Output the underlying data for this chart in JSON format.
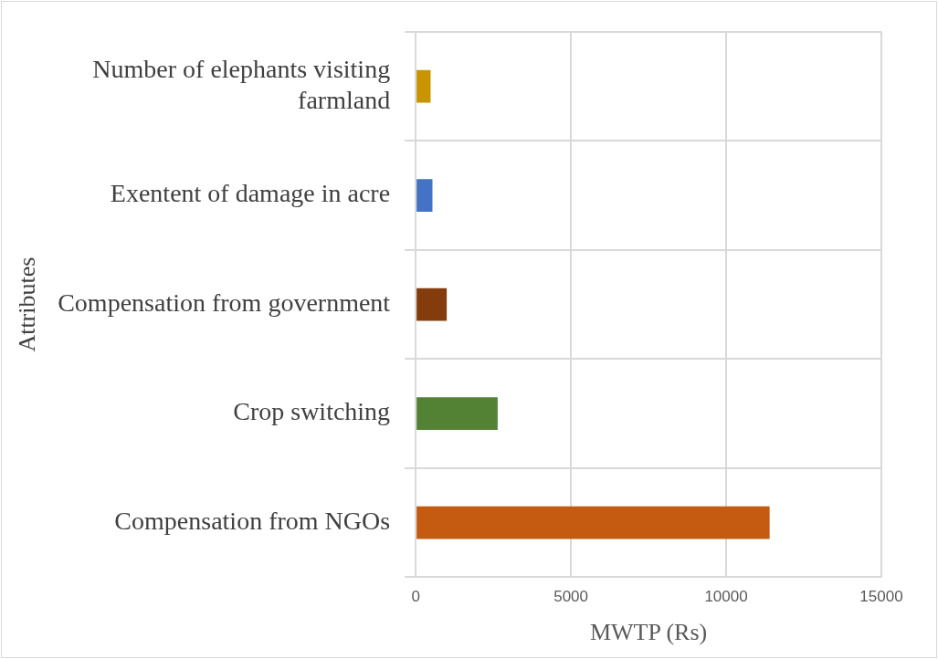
{
  "chart_data": {
    "type": "bar",
    "orientation": "horizontal",
    "xlabel": "MWTP (Rs)",
    "ylabel": "Attributes",
    "categories": [
      "Number of elephants visiting farmland",
      "Exentent of damage in acre",
      "Compensation from government",
      "Crop switching",
      "Compensation from NGOs"
    ],
    "values": [
      480,
      540,
      1000,
      2640,
      11400
    ],
    "colors": [
      "#c89400",
      "#4472c4",
      "#843c0c",
      "#548235",
      "#c55a11"
    ],
    "xlim": [
      0,
      15000
    ],
    "xticks": [
      0,
      5000,
      10000,
      15000
    ],
    "grid": true,
    "legend": false
  }
}
